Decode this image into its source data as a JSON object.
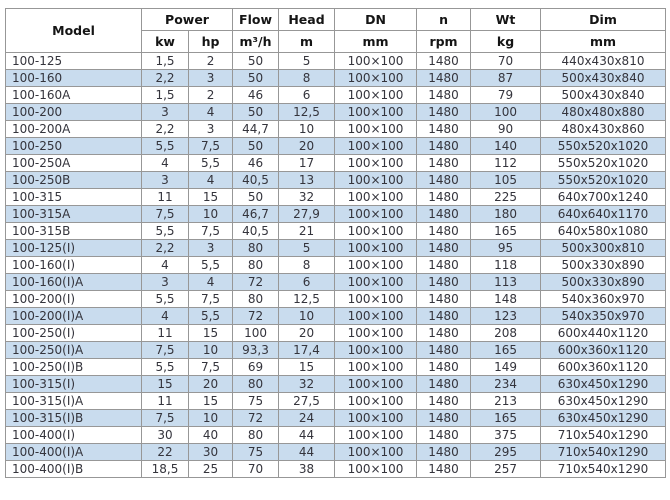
{
  "table": {
    "header": {
      "model": "Model",
      "power": "Power",
      "kw": "kw",
      "hp": "hp",
      "flow": "Flow",
      "flow_unit": "m³/h",
      "head": "Head",
      "head_unit": "m",
      "dn": "DN",
      "dn_unit": "mm",
      "n": "n",
      "n_unit": "rpm",
      "wt": "Wt",
      "wt_unit": "kg",
      "dim": "Dim",
      "dim_unit": "mm"
    },
    "rows": [
      [
        "100-125",
        "1,5",
        "2",
        "50",
        "5",
        "100×100",
        "1480",
        "70",
        "440x430x810"
      ],
      [
        "100-160",
        "2,2",
        "3",
        "50",
        "8",
        "100×100",
        "1480",
        "87",
        "500x430x840"
      ],
      [
        "100-160A",
        "1,5",
        "2",
        "46",
        "6",
        "100×100",
        "1480",
        "79",
        "500x430x840"
      ],
      [
        "100-200",
        "3",
        "4",
        "50",
        "12,5",
        "100×100",
        "1480",
        "100",
        "480x480x880"
      ],
      [
        "100-200A",
        "2,2",
        "3",
        "44,7",
        "10",
        "100×100",
        "1480",
        "90",
        "480x430x860"
      ],
      [
        "100-250",
        "5,5",
        "7,5",
        "50",
        "20",
        "100×100",
        "1480",
        "140",
        "550x520x1020"
      ],
      [
        "100-250A",
        "4",
        "5,5",
        "46",
        "17",
        "100×100",
        "1480",
        "112",
        "550x520x1020"
      ],
      [
        "100-250B",
        "3",
        "4",
        "40,5",
        "13",
        "100×100",
        "1480",
        "105",
        "550x520x1020"
      ],
      [
        "100-315",
        "11",
        "15",
        "50",
        "32",
        "100×100",
        "1480",
        "225",
        "640x700x1240"
      ],
      [
        "100-315A",
        "7,5",
        "10",
        "46,7",
        "27,9",
        "100×100",
        "1480",
        "180",
        "640x640x1170"
      ],
      [
        "100-315B",
        "5,5",
        "7,5",
        "40,5",
        "21",
        "100×100",
        "1480",
        "165",
        "640x580x1080"
      ],
      [
        "100-125(I)",
        "2,2",
        "3",
        "80",
        "5",
        "100×100",
        "1480",
        "95",
        "500x300x810"
      ],
      [
        "100-160(I)",
        "4",
        "5,5",
        "80",
        "8",
        "100×100",
        "1480",
        "118",
        "500x330x890"
      ],
      [
        "100-160(I)A",
        "3",
        "4",
        "72",
        "6",
        "100×100",
        "1480",
        "113",
        "500x330x890"
      ],
      [
        "100-200(I)",
        "5,5",
        "7,5",
        "80",
        "12,5",
        "100×100",
        "1480",
        "148",
        "540x360x970"
      ],
      [
        "100-200(I)A",
        "4",
        "5,5",
        "72",
        "10",
        "100×100",
        "1480",
        "123",
        "540x350x970"
      ],
      [
        "100-250(I)",
        "11",
        "15",
        "100",
        "20",
        "100×100",
        "1480",
        "208",
        "600x440x1120"
      ],
      [
        "100-250(I)A",
        "7,5",
        "10",
        "93,3",
        "17,4",
        "100×100",
        "1480",
        "165",
        "600x360x1120"
      ],
      [
        "100-250(I)B",
        "5,5",
        "7,5",
        "69",
        "15",
        "100×100",
        "1480",
        "149",
        "600x360x1120"
      ],
      [
        "100-315(I)",
        "15",
        "20",
        "80",
        "32",
        "100×100",
        "1480",
        "234",
        "630x450x1290"
      ],
      [
        "100-315(I)A",
        "11",
        "15",
        "75",
        "27,5",
        "100×100",
        "1480",
        "213",
        "630x450x1290"
      ],
      [
        "100-315(I)B",
        "7,5",
        "10",
        "72",
        "24",
        "100×100",
        "1480",
        "165",
        "630x450x1290"
      ],
      [
        "100-400(I)",
        "30",
        "40",
        "80",
        "44",
        "100×100",
        "1480",
        "375",
        "710x540x1290"
      ],
      [
        "100-400(I)A",
        "22",
        "30",
        "75",
        "44",
        "100×100",
        "1480",
        "295",
        "710x540x1290"
      ],
      [
        "100-400(I)B",
        "18,5",
        "25",
        "70",
        "38",
        "100×100",
        "1480",
        "257",
        "710x540x1290"
      ]
    ]
  },
  "colors": {
    "row_alt_bg": "#c9dcee",
    "grid_border": "#979797",
    "outer_border": "#7c7c7c",
    "header_text": "#151515",
    "cell_text": "#34343c",
    "page_bg": "#ffffff"
  }
}
